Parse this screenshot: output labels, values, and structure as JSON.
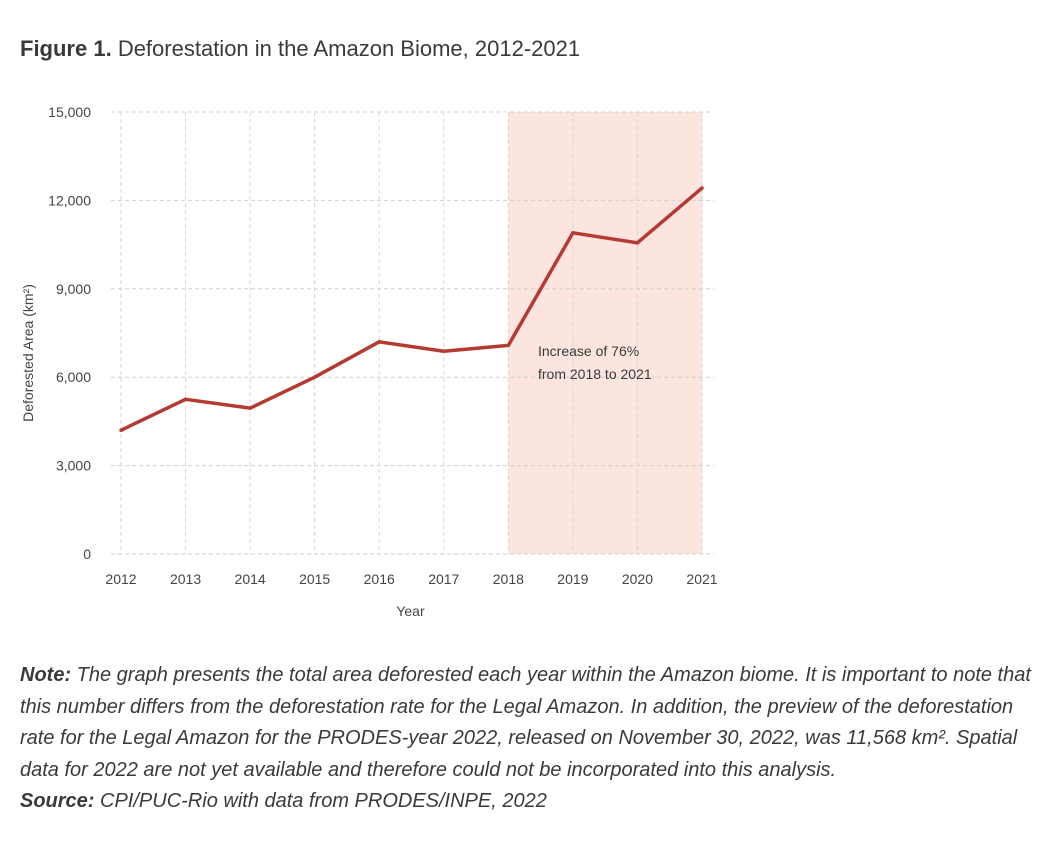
{
  "figure": {
    "number": "Figure 1.",
    "title": "Deforestation in the Amazon Biome, 2012-2021"
  },
  "chart_data": {
    "type": "line",
    "x": [
      "2012",
      "2013",
      "2014",
      "2015",
      "2016",
      "2017",
      "2018",
      "2019",
      "2020",
      "2021"
    ],
    "series": [
      {
        "values": [
          4200,
          5250,
          4950,
          6000,
          7200,
          6880,
          7080,
          10900,
          10560,
          12420
        ],
        "color": "#b53a32"
      }
    ],
    "xlabel": "Year",
    "ylabel": "Deforested Area (km²)",
    "ylim": [
      0,
      15000
    ],
    "yticks": [
      0,
      3000,
      6000,
      9000,
      12000,
      15000
    ],
    "ytick_labels": [
      "0",
      "3,000",
      "6,000",
      "9,000",
      "12,000",
      "15,000"
    ],
    "grid": true,
    "highlight": {
      "from": "2018",
      "to": "2021",
      "color": "#fce4df",
      "annotation": [
        "Increase of 76%",
        "from 2018 to 2021"
      ]
    }
  },
  "note": {
    "label": "Note:",
    "text": " The graph presents the total area deforested each year within the Amazon biome. It is important to note that this number differs from the deforestation rate for the Legal Amazon. In addition, the preview of the deforestation rate for the Legal Amazon for the PRODES-year 2022, released on November 30, 2022, was 11,568 km². Spatial data for 2022 are not yet available and therefore could not be incorporated into this analysis."
  },
  "source": {
    "label": "Source:",
    "text": " CPI/PUC-Rio with data from PRODES/INPE, 2022"
  }
}
